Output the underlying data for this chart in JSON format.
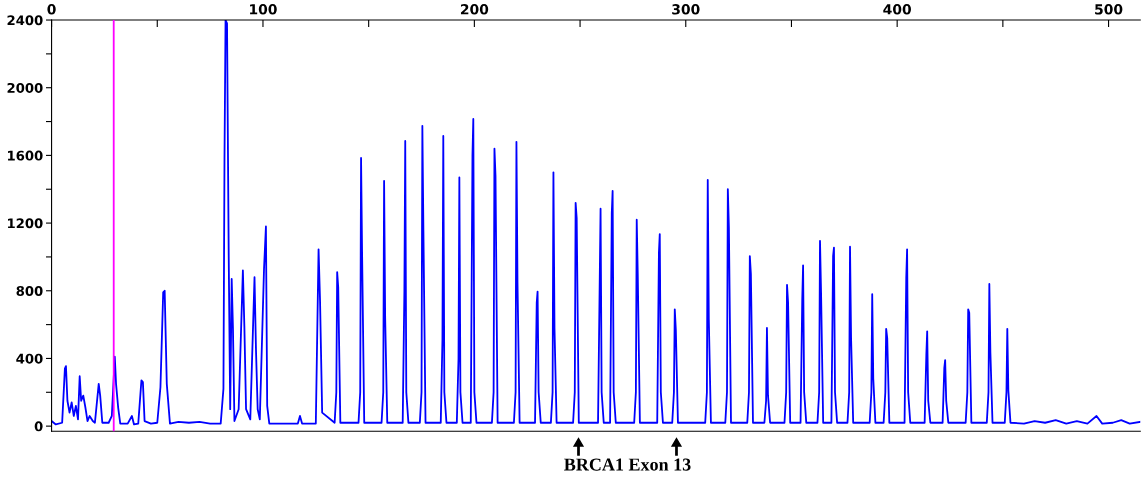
{
  "chart_data": {
    "type": "line",
    "xlim": [
      0,
      515
    ],
    "ylim": [
      -30,
      2400
    ],
    "xticks": [
      0,
      {
        "value": 50,
        "label": null
      },
      100,
      {
        "value": 150,
        "label": null
      },
      200,
      {
        "value": 250,
        "label": null
      },
      300,
      {
        "value": 350,
        "label": null
      },
      400,
      {
        "value": 450,
        "label": null
      },
      500
    ],
    "yticks": [
      0,
      {
        "value": 200,
        "label": null
      },
      400,
      {
        "value": 600,
        "label": null
      },
      800,
      {
        "value": 1000,
        "label": null
      },
      1200,
      {
        "value": 1400,
        "label": null
      },
      1600,
      {
        "value": 1800,
        "label": null
      },
      2000,
      {
        "value": 2200,
        "label": null
      },
      2400
    ],
    "grid": false,
    "legend": false,
    "marker": "none",
    "line_style": "solid",
    "ref_lines": [
      {
        "axis": "x",
        "value": 29.4,
        "color": "#ff00ff"
      }
    ],
    "annotations": [
      "BRCA1 Exon 13"
    ],
    "series": [
      {
        "color": "#0000ff",
        "x": [
          0,
          2,
          5,
          6.3,
          6.8,
          7.5,
          8.5,
          9.5,
          10.5,
          11.5,
          12.5,
          13.3,
          14,
          15,
          16,
          17,
          18,
          19.5,
          20.5,
          22.3,
          23,
          24,
          27,
          28.5,
          29.9,
          30.5,
          31.5,
          32.5,
          36,
          38,
          39,
          41,
          42.5,
          43.2,
          44,
          47,
          50,
          51.5,
          52.8,
          53.5,
          54.5,
          56,
          60,
          65,
          70,
          75,
          80,
          81.3,
          81.8,
          82.3,
          83,
          83.8,
          84.5,
          85.2,
          85.8,
          86.5,
          88.5,
          90.5,
          91.2,
          92,
          94,
          96,
          96.7,
          97.5,
          98.5,
          100.5,
          101.4,
          102,
          103,
          110,
          116.5,
          117.5,
          118.5,
          125,
          126.3,
          127,
          128,
          133.9,
          134.7,
          135.1,
          135.6,
          136.6,
          145.2,
          146,
          146.4,
          146.9,
          147.9,
          156.1,
          156.9,
          157.3,
          157.8,
          158.8,
          166.1,
          166.9,
          167.3,
          167.8,
          168.8,
          174.2,
          175,
          175.4,
          175.9,
          176.9,
          184.1,
          184.9,
          185.3,
          185.8,
          186.8,
          191.7,
          192.5,
          192.9,
          193.4,
          194.4,
          198.3,
          199.1,
          199.5,
          200,
          201,
          208.3,
          209.1,
          209.5,
          210,
          211,
          218.7,
          219.5,
          219.9,
          220.4,
          221.4,
          228.7,
          229.5,
          229.9,
          230.4,
          231.4,
          236.2,
          237,
          237.4,
          237.9,
          238.9,
          246.7,
          247.5,
          247.9,
          248.4,
          249.4,
          258.5,
          259.3,
          259.7,
          260.2,
          261.2,
          264.2,
          265,
          265.4,
          265.9,
          266.9,
          275.6,
          276.4,
          276.8,
          277.3,
          278.3,
          286.5,
          287.3,
          287.7,
          288.2,
          289.2,
          293.6,
          294.4,
          294.8,
          295.3,
          296.3,
          309.2,
          310,
          310.4,
          310.9,
          311.9,
          318.7,
          319.5,
          319.9,
          320.4,
          321.4,
          329.1,
          329.9,
          330.3,
          330.8,
          331.8,
          337.2,
          338,
          338.4,
          338.9,
          339.9,
          346.7,
          347.5,
          347.9,
          348.4,
          349.4,
          354.3,
          355.1,
          355.5,
          356,
          357,
          362.3,
          363.1,
          363.5,
          364,
          365,
          368.9,
          369.7,
          370.1,
          370.6,
          371.6,
          376.5,
          377.3,
          377.7,
          378.2,
          379.2,
          387,
          387.8,
          388.2,
          388.7,
          389.7,
          393.6,
          394.4,
          394.8,
          395.3,
          396.3,
          403.5,
          404.3,
          404.7,
          405.2,
          406.2,
          413,
          413.8,
          414.2,
          414.7,
          415.7,
          421.5,
          422.3,
          422.7,
          423.2,
          424.2,
          432.4,
          433.2,
          433.6,
          434.1,
          435.1,
          442.4,
          443.2,
          443.6,
          444.1,
          445.1,
          450.9,
          451.7,
          452.1,
          452.6,
          453.6,
          460,
          465,
          470,
          475,
          480,
          485,
          490,
          494.3,
          497,
          502,
          506,
          510,
          515
        ],
        "values": [
          30,
          10,
          20,
          340,
          355,
          150,
          80,
          140,
          60,
          120,
          40,
          295,
          150,
          180,
          110,
          30,
          60,
          30,
          20,
          250,
          180,
          20,
          20,
          60,
          410,
          250,
          110,
          15,
          15,
          60,
          10,
          15,
          270,
          260,
          30,
          15,
          20,
          230,
          790,
          800,
          250,
          15,
          25,
          20,
          25,
          15,
          15,
          220,
          1580,
          2400,
          2380,
          1000,
          100,
          870,
          580,
          30,
          100,
          920,
          590,
          100,
          40,
          880,
          450,
          100,
          40,
          930,
          1180,
          120,
          15,
          15,
          15,
          60,
          15,
          15,
          1045,
          740,
          80,
          20,
          200,
          910,
          820,
          20,
          20,
          200,
          1585,
          1010,
          20,
          20,
          200,
          1450,
          640,
          20,
          20,
          800,
          1685,
          200,
          20,
          20,
          200,
          1775,
          1150,
          20,
          20,
          510,
          1715,
          200,
          20,
          20,
          400,
          1470,
          200,
          20,
          20,
          1600,
          1815,
          200,
          20,
          20,
          200,
          1640,
          1480,
          20,
          20,
          200,
          1680,
          850,
          20,
          20,
          730,
          795,
          200,
          20,
          20,
          200,
          1500,
          580,
          20,
          20,
          200,
          1320,
          1230,
          20,
          20,
          860,
          1285,
          200,
          20,
          20,
          1260,
          1390,
          200,
          20,
          20,
          200,
          1220,
          890,
          20,
          20,
          1025,
          1135,
          200,
          20,
          20,
          200,
          690,
          570,
          20,
          20,
          200,
          1455,
          630,
          20,
          20,
          200,
          1400,
          1175,
          20,
          20,
          200,
          1005,
          900,
          20,
          20,
          150,
          580,
          180,
          20,
          20,
          200,
          835,
          730,
          20,
          20,
          745,
          950,
          200,
          20,
          20,
          200,
          1095,
          790,
          20,
          20,
          1005,
          1055,
          200,
          20,
          20,
          200,
          1060,
          520,
          20,
          20,
          200,
          780,
          280,
          20,
          20,
          200,
          575,
          520,
          20,
          20,
          875,
          1045,
          200,
          20,
          20,
          420,
          560,
          150,
          20,
          20,
          345,
          390,
          150,
          20,
          20,
          200,
          690,
          670,
          20,
          20,
          200,
          840,
          435,
          20,
          20,
          200,
          575,
          210,
          20,
          15,
          30,
          20,
          35,
          15,
          30,
          15,
          60,
          15,
          20,
          35,
          15,
          25
        ]
      }
    ]
  }
}
